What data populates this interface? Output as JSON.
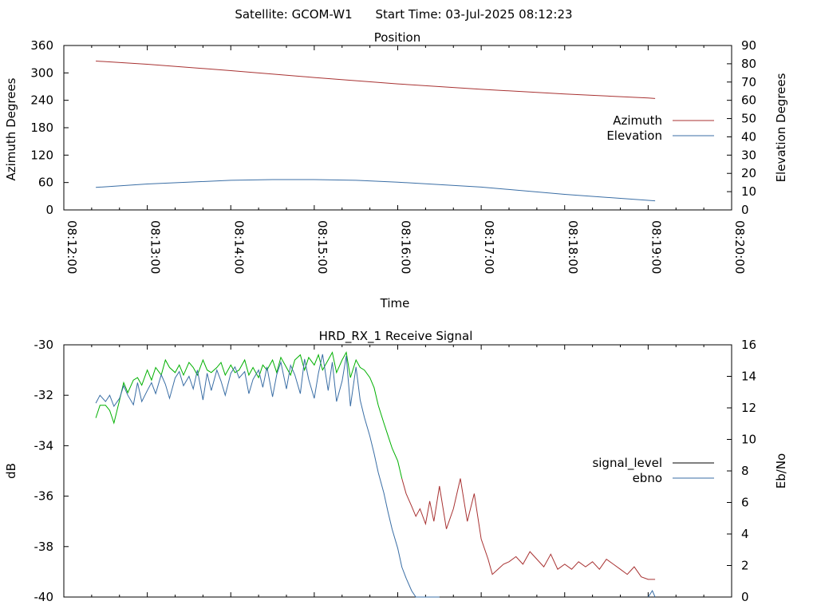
{
  "header": {
    "satellite": "Satellite: GCOM-W1",
    "start_time": "Start Time: 03-Jul-2025 08:12:23"
  },
  "colors": {
    "azimuth": "#a83232",
    "elevation": "#3a6ea5",
    "signal_level_legend": "#000000",
    "signal_green": "#00b000",
    "signal_red": "#a83232",
    "ebno": "#3a6ea5"
  },
  "chart_data": [
    {
      "type": "line",
      "title": "Position",
      "xlabel": "Time",
      "ylabel": "Azimuth Degrees",
      "y2label": "Elevation Degrees",
      "xlim": [
        "08:12:00",
        "08:20:00"
      ],
      "x_ticks": [
        "08:12:00",
        "08:13:00",
        "08:14:00",
        "08:15:00",
        "08:16:00",
        "08:17:00",
        "08:18:00",
        "08:19:00",
        "08:20:00"
      ],
      "ylim": [
        0,
        360
      ],
      "y_ticks": [
        "0",
        "60",
        "120",
        "180",
        "240",
        "300",
        "360"
      ],
      "y2lim": [
        0,
        90
      ],
      "y2_ticks": [
        "0",
        "10",
        "20",
        "30",
        "40",
        "50",
        "60",
        "70",
        "80",
        "90"
      ],
      "legend_position": "right",
      "series": [
        {
          "name": "Azimuth",
          "axis": "left",
          "x": [
            "08:12:23",
            "08:13:00",
            "08:14:00",
            "08:15:00",
            "08:16:00",
            "08:17:00",
            "08:18:00",
            "08:19:00",
            "08:19:05"
          ],
          "values": [
            326,
            319,
            305,
            290,
            276,
            264,
            254,
            245,
            244
          ]
        },
        {
          "name": "Elevation",
          "axis": "right",
          "x": [
            "08:12:23",
            "08:13:00",
            "08:14:00",
            "08:14:30",
            "08:15:00",
            "08:15:30",
            "08:16:00",
            "08:17:00",
            "08:18:00",
            "08:19:05"
          ],
          "values": [
            12.3,
            14.2,
            16.2,
            16.6,
            16.6,
            16.2,
            15.2,
            12.5,
            8.5,
            5.0
          ]
        }
      ]
    },
    {
      "type": "line",
      "title": "HRD_RX_1 Receive Signal",
      "ylabel": "dB",
      "y2label": "Eb/No",
      "xlim": [
        "08:12:00",
        "08:20:00"
      ],
      "ylim": [
        -40,
        -30
      ],
      "y_ticks": [
        "-30",
        "-32",
        "-34",
        "-36",
        "-38",
        "-40"
      ],
      "y2lim": [
        0,
        16
      ],
      "y2_ticks": [
        "0",
        "2",
        "4",
        "6",
        "8",
        "10",
        "12",
        "14",
        "16"
      ],
      "legend_position": "right",
      "series": [
        {
          "name": "signal_level",
          "axis": "left",
          "x": [
            "08:12:23",
            "08:12:26",
            "08:12:30",
            "08:12:33",
            "08:12:36",
            "08:12:40",
            "08:12:43",
            "08:12:46",
            "08:12:50",
            "08:12:53",
            "08:12:56",
            "08:13:00",
            "08:13:03",
            "08:13:06",
            "08:13:10",
            "08:13:13",
            "08:13:16",
            "08:13:20",
            "08:13:23",
            "08:13:26",
            "08:13:30",
            "08:13:33",
            "08:13:36",
            "08:13:40",
            "08:13:43",
            "08:13:46",
            "08:13:50",
            "08:13:53",
            "08:13:56",
            "08:14:00",
            "08:14:03",
            "08:14:06",
            "08:14:10",
            "08:14:13",
            "08:14:16",
            "08:14:20",
            "08:14:23",
            "08:14:26",
            "08:14:30",
            "08:14:33",
            "08:14:36",
            "08:14:40",
            "08:14:43",
            "08:14:46",
            "08:14:50",
            "08:14:53",
            "08:14:56",
            "08:15:00",
            "08:15:03",
            "08:15:06",
            "08:15:10",
            "08:15:13",
            "08:15:16",
            "08:15:20",
            "08:15:23",
            "08:15:26",
            "08:15:30",
            "08:15:33",
            "08:15:36",
            "08:15:40",
            "08:15:43",
            "08:15:46",
            "08:15:50",
            "08:15:53",
            "08:15:56",
            "08:16:00",
            "08:16:03",
            "08:16:06",
            "08:16:10",
            "08:16:13",
            "08:16:16",
            "08:16:20",
            "08:16:23",
            "08:16:26",
            "08:16:30",
            "08:16:35",
            "08:16:40",
            "08:16:45",
            "08:16:50",
            "08:16:55",
            "08:17:00",
            "08:17:05",
            "08:17:08",
            "08:17:12",
            "08:17:16",
            "08:17:20",
            "08:17:25",
            "08:17:30",
            "08:17:35",
            "08:17:40",
            "08:17:45",
            "08:17:50",
            "08:17:55",
            "08:18:00",
            "08:18:05",
            "08:18:10",
            "08:18:15",
            "08:18:20",
            "08:18:25",
            "08:18:30",
            "08:18:35",
            "08:18:40",
            "08:18:45",
            "08:18:50",
            "08:18:55",
            "08:19:00",
            "08:19:05"
          ],
          "values": [
            -32.9,
            -32.4,
            -32.4,
            -32.6,
            -33.1,
            -32.2,
            -31.5,
            -31.9,
            -31.4,
            -31.3,
            -31.6,
            -31.0,
            -31.4,
            -30.9,
            -31.2,
            -30.6,
            -30.9,
            -31.1,
            -30.8,
            -31.2,
            -30.7,
            -30.9,
            -31.2,
            -30.6,
            -31.0,
            -31.1,
            -30.9,
            -30.7,
            -31.2,
            -30.8,
            -31.1,
            -31.0,
            -30.6,
            -31.2,
            -30.9,
            -31.3,
            -30.8,
            -31.0,
            -30.6,
            -31.1,
            -30.5,
            -30.9,
            -31.2,
            -30.6,
            -30.4,
            -31.0,
            -30.5,
            -30.8,
            -30.4,
            -31.0,
            -30.6,
            -30.3,
            -31.1,
            -30.6,
            -30.3,
            -31.3,
            -30.6,
            -30.9,
            -31.0,
            -31.3,
            -31.7,
            -32.4,
            -33.1,
            -33.6,
            -34.1,
            -34.6,
            -35.3,
            -35.9,
            -36.4,
            -36.8,
            -36.5,
            -37.1,
            -36.2,
            -37.0,
            -35.6,
            -37.3,
            -36.5,
            -35.3,
            -37.0,
            -35.9,
            -37.7,
            -38.5,
            -39.1,
            -38.9,
            -38.7,
            -38.6,
            -38.4,
            -38.7,
            -38.2,
            -38.5,
            -38.8,
            -38.3,
            -38.9,
            -38.7,
            -38.9,
            -38.6,
            -38.8,
            -38.6,
            -38.9,
            -38.5,
            -38.7,
            -38.9,
            -39.1,
            -38.8,
            -39.2,
            -39.3,
            -39.3
          ]
        },
        {
          "name": "ebno",
          "axis": "right",
          "x": [
            "08:12:23",
            "08:12:26",
            "08:12:30",
            "08:12:33",
            "08:12:36",
            "08:12:40",
            "08:12:43",
            "08:12:46",
            "08:12:50",
            "08:12:53",
            "08:12:56",
            "08:13:00",
            "08:13:03",
            "08:13:06",
            "08:13:10",
            "08:13:13",
            "08:13:16",
            "08:13:20",
            "08:13:23",
            "08:13:26",
            "08:13:30",
            "08:13:33",
            "08:13:36",
            "08:13:40",
            "08:13:43",
            "08:13:46",
            "08:13:50",
            "08:13:53",
            "08:13:56",
            "08:14:00",
            "08:14:03",
            "08:14:06",
            "08:14:10",
            "08:14:13",
            "08:14:16",
            "08:14:20",
            "08:14:23",
            "08:14:26",
            "08:14:30",
            "08:14:33",
            "08:14:36",
            "08:14:40",
            "08:14:43",
            "08:14:46",
            "08:14:50",
            "08:14:53",
            "08:14:56",
            "08:15:00",
            "08:15:03",
            "08:15:06",
            "08:15:10",
            "08:15:13",
            "08:15:16",
            "08:15:20",
            "08:15:23",
            "08:15:26",
            "08:15:30",
            "08:15:33",
            "08:15:36",
            "08:15:40",
            "08:15:43",
            "08:15:46",
            "08:15:50",
            "08:15:53",
            "08:15:56",
            "08:16:00",
            "08:16:03"
          ],
          "values": [
            12.3,
            12.8,
            12.4,
            12.8,
            12.1,
            12.6,
            13.4,
            12.8,
            12.2,
            13.6,
            12.4,
            13.1,
            13.6,
            12.9,
            14.1,
            13.5,
            12.6,
            13.9,
            14.3,
            13.4,
            14.0,
            13.2,
            14.4,
            12.5,
            14.2,
            13.1,
            14.4,
            13.7,
            12.8,
            14.2,
            14.6,
            13.9,
            14.3,
            12.9,
            13.8,
            14.4,
            13.3,
            14.6,
            12.7,
            14.1,
            14.9,
            13.2,
            14.7,
            14.1,
            12.9,
            15.1,
            13.8,
            12.6,
            14.2,
            15.4,
            13.1,
            14.9,
            12.4,
            13.7,
            15.3,
            12.1,
            14.6,
            12.5,
            11.4,
            10.2,
            9.1,
            7.9,
            6.6,
            5.4,
            4.3,
            3.1,
            1.9
          ]
        },
        {
          "name": "ebno",
          "axis": "right",
          "x": [
            "08:16:03",
            "08:16:06",
            "08:16:10",
            "08:16:13",
            "08:16:16",
            "08:16:20",
            "08:16:23",
            "08:16:26",
            "08:16:30"
          ],
          "values": [
            1.9,
            1.2,
            0.4,
            0.0,
            0.0,
            0.0,
            0.0,
            0.0,
            0.0
          ]
        },
        {
          "name": "ebno",
          "axis": "right",
          "x": [
            "08:19:00",
            "08:19:03",
            "08:19:05"
          ],
          "values": [
            0.0,
            0.4,
            0.0
          ]
        }
      ]
    }
  ]
}
